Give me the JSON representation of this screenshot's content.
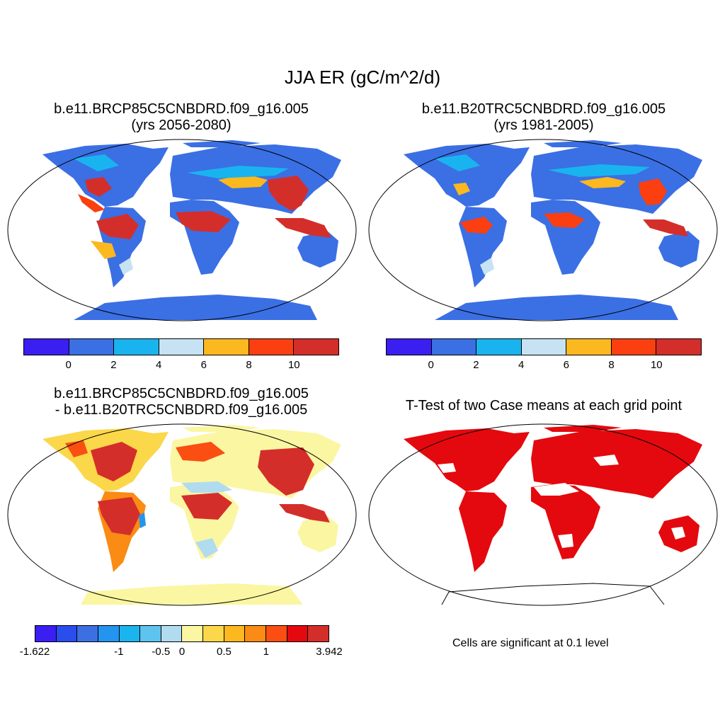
{
  "title": "JJA ER (gC/m^2/d)",
  "panels": [
    {
      "title1": "b.e11.BRCP85C5CNBDRD.f09_g16.005",
      "title2": "(yrs 2056-2080)"
    },
    {
      "title1": "b.e11.B20TRC5CNBDRD.f09_g16.005",
      "title2": "(yrs 1981-2005)"
    },
    {
      "title1": "b.e11.BRCP85C5CNBDRD.f09_g16.005",
      "title2": "- b.e11.B20TRC5CNBDRD.f09_g16.005"
    },
    {
      "title1": "T-Test of two Case means at each grid point"
    }
  ],
  "colorbar_main": {
    "colors": [
      "#3a1ef2",
      "#3b6fe4",
      "#19b4ef",
      "#c7e3f3",
      "#fbb81f",
      "#fb3f10",
      "#d42e2a"
    ],
    "labels": [
      "0",
      "2",
      "4",
      "6",
      "8",
      "10"
    ]
  },
  "colorbar_diff": {
    "colors": [
      "#3a1ef2",
      "#2a4dee",
      "#3c6fe2",
      "#2394ef",
      "#1ab4ee",
      "#5ec3ee",
      "#b1dcf0",
      "#fbf6a2",
      "#fbd74a",
      "#fbb81f",
      "#fa8b14",
      "#fa4e12",
      "#e4090e",
      "#d42e2a"
    ],
    "labels": [
      "-1.622",
      "-1",
      "-0.5",
      "0",
      "0.5",
      "1",
      "3.942"
    ]
  },
  "note": "Cells are significant at 0.1 level"
}
